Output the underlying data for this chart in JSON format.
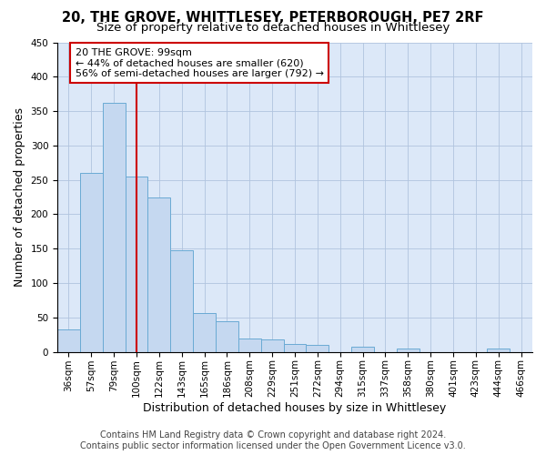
{
  "title": "20, THE GROVE, WHITTLESEY, PETERBOROUGH, PE7 2RF",
  "subtitle": "Size of property relative to detached houses in Whittlesey",
  "xlabel": "Distribution of detached houses by size in Whittlesey",
  "ylabel": "Number of detached properties",
  "categories": [
    "36sqm",
    "57sqm",
    "79sqm",
    "100sqm",
    "122sqm",
    "143sqm",
    "165sqm",
    "186sqm",
    "208sqm",
    "229sqm",
    "251sqm",
    "272sqm",
    "294sqm",
    "315sqm",
    "337sqm",
    "358sqm",
    "380sqm",
    "401sqm",
    "423sqm",
    "444sqm",
    "466sqm"
  ],
  "values": [
    33,
    260,
    362,
    255,
    225,
    148,
    57,
    45,
    20,
    18,
    11,
    10,
    0,
    7,
    0,
    5,
    0,
    0,
    0,
    5,
    0
  ],
  "bar_color": "#c5d8f0",
  "bar_edge_color": "#6aaad4",
  "vline_color": "#cc0000",
  "annotation_text": "20 THE GROVE: 99sqm\n← 44% of detached houses are smaller (620)\n56% of semi-detached houses are larger (792) →",
  "annotation_box_color": "#ffffff",
  "annotation_box_edge": "#cc0000",
  "ylim": [
    0,
    450
  ],
  "yticks": [
    0,
    50,
    100,
    150,
    200,
    250,
    300,
    350,
    400,
    450
  ],
  "bg_color": "#ffffff",
  "plot_bg_color": "#dce8f8",
  "grid_color": "#b0c4de",
  "footer_line1": "Contains HM Land Registry data © Crown copyright and database right 2024.",
  "footer_line2": "Contains public sector information licensed under the Open Government Licence v3.0.",
  "title_fontsize": 10.5,
  "subtitle_fontsize": 9.5,
  "axis_label_fontsize": 9,
  "tick_fontsize": 7.5,
  "annotation_fontsize": 8,
  "footer_fontsize": 7
}
